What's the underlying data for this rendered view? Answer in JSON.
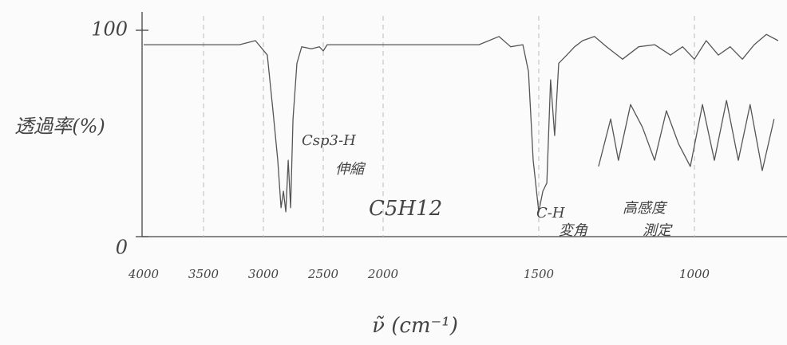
{
  "chart_data": {
    "type": "line",
    "x_label": "ν̃ (cm⁻¹)",
    "y_label": "透過率(%)",
    "xlim": [
      4000,
      700
    ],
    "xticks": [
      4000,
      3500,
      3000,
      2500,
      2000,
      1500,
      1000
    ],
    "ylim": [
      0,
      100
    ],
    "yticks": [
      0,
      100
    ],
    "grid": true,
    "annotations": [
      "Csp3-H",
      "伸縮",
      "C5H12",
      "C-H",
      "変角",
      "高感度",
      "測定"
    ],
    "series": [
      {
        "color": "#555555",
        "x": [
          4000,
          3200,
          3067,
          2967,
          2920,
          2880,
          2853,
          2833,
          2813,
          2793,
          2773,
          2753,
          2720,
          2680,
          2600,
          2533,
          2500,
          2467,
          2000,
          1692,
          1628,
          1590,
          1551,
          1533,
          1518,
          1500,
          1487,
          1474,
          1462,
          1449,
          1436,
          1410,
          1385,
          1359,
          1321,
          1282,
          1231,
          1179,
          1128,
          1077,
          1038,
          1000,
          962,
          923,
          885,
          846,
          808,
          769,
          731
        ],
        "values": [
          93,
          93,
          95,
          88,
          61,
          37,
          14,
          22,
          12,
          37,
          14,
          57,
          84,
          92,
          91,
          92,
          90,
          93,
          93,
          93,
          97,
          92,
          93,
          80,
          37,
          12,
          22,
          26,
          76,
          49,
          84,
          88,
          92,
          95,
          97,
          92,
          86,
          92,
          93,
          88,
          92,
          86,
          95,
          88,
          92,
          86,
          93,
          98,
          95
        ]
      },
      {
        "color": "#555555",
        "x": [
          1308,
          1269,
          1244,
          1205,
          1167,
          1128,
          1090,
          1051,
          1013,
          974,
          936,
          897,
          859,
          821,
          782,
          744
        ],
        "values": [
          34,
          57,
          37,
          64,
          53,
          37,
          61,
          45,
          34,
          64,
          37,
          66,
          37,
          64,
          32,
          57
        ]
      }
    ]
  }
}
